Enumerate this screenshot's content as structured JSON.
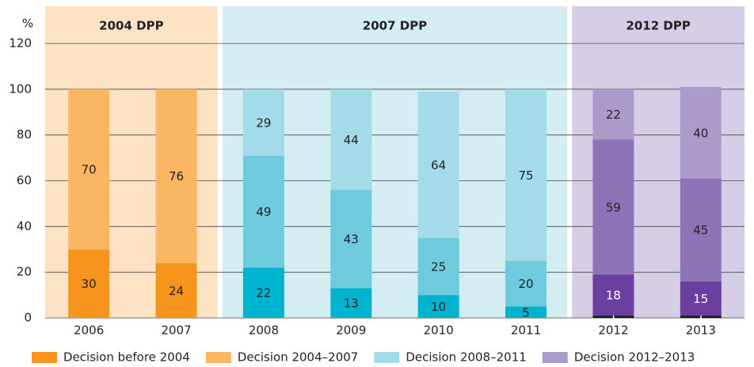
{
  "chart_data": {
    "type": "stacked_bar",
    "y_label": "%",
    "categories": [
      "2006",
      "2007",
      "2008",
      "2009",
      "2010",
      "2011",
      "2012",
      "2013"
    ],
    "ylim": [
      0,
      120
    ],
    "yticks": [
      0,
      20,
      40,
      60,
      80,
      100,
      120
    ],
    "grid": true,
    "groups": [
      {
        "label": "2004 DPP",
        "from": 0,
        "to": 1,
        "color": "#fde2c3"
      },
      {
        "label": "2007 DPP",
        "from": 2,
        "to": 5,
        "color": "#d3edf3"
      },
      {
        "label": "2012 DPP",
        "from": 6,
        "to": 7,
        "color": "#d6cde6"
      }
    ],
    "series": [
      {
        "name": "Decision before 2004",
        "color": "#f7941d",
        "colors": [
          "#f7941d",
          "#f7941d",
          "#00b3cf",
          "#00b3cf",
          "#00b3cf",
          "#00b3cf",
          "#1a1a1a",
          "#1a1a1a"
        ],
        "values": [
          30,
          24,
          22,
          13,
          10,
          5,
          1,
          1
        ]
      },
      {
        "name": "Decision 2004–2007",
        "color": "#fbb663",
        "colors": [
          "#fbb663",
          "#fbb663",
          "#6ecbdd",
          "#6ecbdd",
          "#6ecbdd",
          "#6ecbdd",
          "#6a3f9f",
          "#6a3f9f"
        ],
        "values": [
          70,
          76,
          49,
          43,
          25,
          20,
          18,
          15
        ]
      },
      {
        "name": "Decision 2008–2011",
        "color": "#a3dce8",
        "colors": [
          null,
          null,
          "#a3dce8",
          "#a3dce8",
          "#a3dce8",
          "#a3dce8",
          "#8d74b7",
          "#8d74b7"
        ],
        "values": [
          null,
          null,
          29,
          44,
          64,
          75,
          59,
          45
        ]
      },
      {
        "name": "Decision 2012–2013",
        "color": "#ab9bcb",
        "colors": [
          null,
          null,
          null,
          null,
          null,
          null,
          "#ab9bcb",
          "#ab9bcb"
        ],
        "values": [
          null,
          null,
          null,
          null,
          null,
          null,
          22,
          40
        ]
      }
    ]
  }
}
